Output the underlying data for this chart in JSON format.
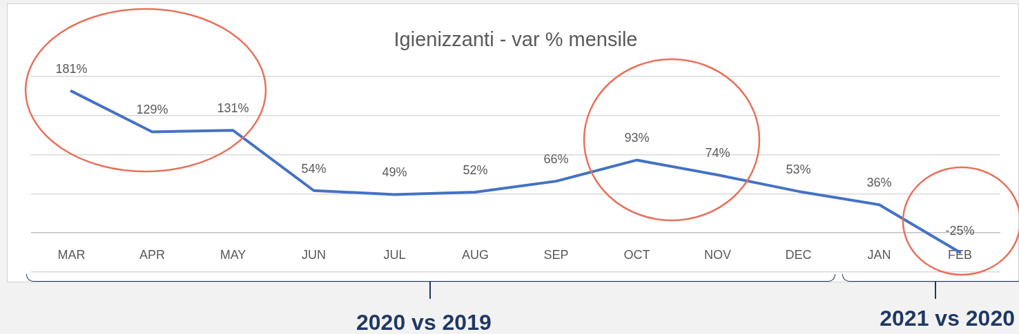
{
  "chart_data": {
    "type": "line",
    "title": "Igienizzanti - var % mensile",
    "categories": [
      "MAR",
      "APR",
      "MAY",
      "JUN",
      "JUL",
      "AUG",
      "SEP",
      "OCT",
      "NOV",
      "DEC",
      "JAN",
      "FEB"
    ],
    "series": [
      {
        "color": "#4472c4",
        "values": [
          181,
          129,
          131,
          54,
          49,
          52,
          66,
          93,
          74,
          53,
          36,
          -25
        ],
        "value_labels": [
          "181%",
          "129%",
          "131%",
          "54%",
          "49%",
          "52%",
          "66%",
          "93%",
          "74%",
          "53%",
          "36%",
          "-25%"
        ]
      }
    ],
    "tick_labels": "x",
    "grid": "y",
    "legend": false,
    "marker": "none",
    "line_style": "solid",
    "annotations": [
      "2020 vs 2019",
      "2021 vs 2020"
    ]
  }
}
